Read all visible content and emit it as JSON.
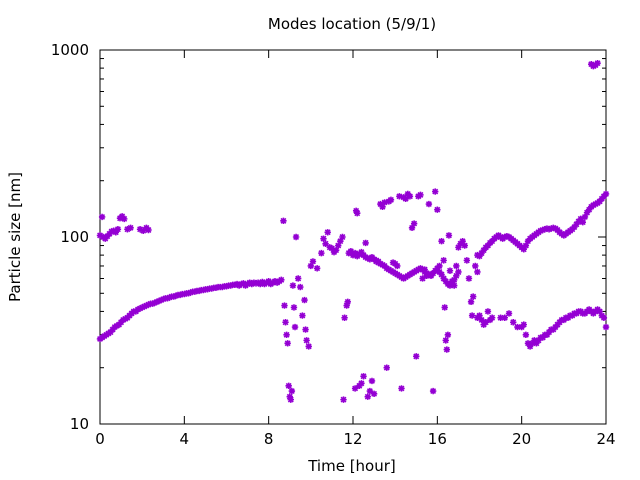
{
  "chart_data": {
    "type": "scatter",
    "title": "Modes location (5/9/1)",
    "xlabel": "Time [hour]",
    "ylabel": "Particle size [nm]",
    "xlim": [
      0,
      24
    ],
    "ylim": [
      10,
      1000
    ],
    "yscale": "log",
    "xticks": [
      0,
      4,
      8,
      12,
      16,
      20,
      24
    ],
    "xtick_labels": [
      "0",
      "4",
      "8",
      "12",
      "16",
      "20",
      "24"
    ],
    "yticks": [
      10,
      100,
      1000
    ],
    "ytick_labels": [
      "10",
      "100",
      "1000"
    ],
    "grid": false,
    "legend": "none",
    "marker": "asterisk",
    "color": "#9400d3",
    "points": [
      [
        0.0,
        28.5
      ],
      [
        0.1,
        29
      ],
      [
        0.2,
        29.5
      ],
      [
        0.3,
        30
      ],
      [
        0.4,
        30.5
      ],
      [
        0.5,
        31
      ],
      [
        0.6,
        32
      ],
      [
        0.7,
        33
      ],
      [
        0.8,
        33.5
      ],
      [
        0.9,
        34
      ],
      [
        1.0,
        35
      ],
      [
        1.1,
        36
      ],
      [
        1.2,
        36.5
      ],
      [
        1.3,
        37
      ],
      [
        1.4,
        38
      ],
      [
        1.5,
        39
      ],
      [
        1.6,
        40
      ],
      [
        1.7,
        40
      ],
      [
        1.8,
        41
      ],
      [
        1.9,
        41.5
      ],
      [
        2.0,
        42
      ],
      [
        2.1,
        42.5
      ],
      [
        2.2,
        43
      ],
      [
        2.3,
        43.5
      ],
      [
        2.4,
        44
      ],
      [
        2.5,
        44
      ],
      [
        2.6,
        44.5
      ],
      [
        2.7,
        45
      ],
      [
        2.8,
        45.5
      ],
      [
        2.9,
        46
      ],
      [
        3.0,
        46.5
      ],
      [
        3.1,
        47
      ],
      [
        3.2,
        47
      ],
      [
        3.3,
        47.5
      ],
      [
        3.4,
        48
      ],
      [
        3.5,
        48
      ],
      [
        3.6,
        48.5
      ],
      [
        3.7,
        49
      ],
      [
        3.8,
        49
      ],
      [
        3.9,
        49.5
      ],
      [
        4.0,
        49.5
      ],
      [
        4.1,
        50
      ],
      [
        4.2,
        50
      ],
      [
        4.3,
        50.5
      ],
      [
        4.4,
        51
      ],
      [
        4.5,
        51
      ],
      [
        4.6,
        51.5
      ],
      [
        4.7,
        51.5
      ],
      [
        4.8,
        52
      ],
      [
        4.9,
        52
      ],
      [
        5.0,
        52.5
      ],
      [
        5.1,
        52.5
      ],
      [
        5.2,
        53
      ],
      [
        5.3,
        53
      ],
      [
        5.4,
        53.5
      ],
      [
        5.5,
        53.5
      ],
      [
        5.6,
        54
      ],
      [
        5.7,
        54
      ],
      [
        5.8,
        54
      ],
      [
        5.9,
        54.5
      ],
      [
        6.0,
        54.5
      ],
      [
        6.1,
        55
      ],
      [
        6.2,
        55
      ],
      [
        6.3,
        55.5
      ],
      [
        6.4,
        55.5
      ],
      [
        6.5,
        56
      ],
      [
        6.6,
        55
      ],
      [
        6.7,
        56
      ],
      [
        6.8,
        56.5
      ],
      [
        6.9,
        55
      ],
      [
        7.0,
        56
      ],
      [
        7.1,
        57
      ],
      [
        7.2,
        56
      ],
      [
        7.3,
        57
      ],
      [
        7.4,
        56.5
      ],
      [
        7.5,
        57
      ],
      [
        7.6,
        56
      ],
      [
        7.7,
        57.5
      ],
      [
        7.8,
        56
      ],
      [
        7.9,
        57
      ],
      [
        8.0,
        58
      ],
      [
        8.1,
        56
      ],
      [
        8.2,
        57
      ],
      [
        8.3,
        58
      ],
      [
        8.4,
        57
      ],
      [
        8.5,
        58
      ],
      [
        8.6,
        59
      ],
      [
        0.0,
        102
      ],
      [
        0.1,
        128
      ],
      [
        0.15,
        100
      ],
      [
        0.25,
        98
      ],
      [
        0.35,
        101
      ],
      [
        0.45,
        104
      ],
      [
        0.55,
        107
      ],
      [
        0.65,
        108
      ],
      [
        0.75,
        106
      ],
      [
        0.85,
        110
      ],
      [
        0.95,
        126
      ],
      [
        1.05,
        129
      ],
      [
        1.15,
        125
      ],
      [
        1.3,
        110
      ],
      [
        1.45,
        112
      ],
      [
        1.9,
        110
      ],
      [
        2.05,
        108
      ],
      [
        2.2,
        112
      ],
      [
        2.3,
        109
      ],
      [
        8.7,
        122
      ],
      [
        8.75,
        43
      ],
      [
        8.8,
        35
      ],
      [
        8.85,
        30
      ],
      [
        8.9,
        27
      ],
      [
        8.95,
        16
      ],
      [
        9.0,
        14
      ],
      [
        9.05,
        13.5
      ],
      [
        9.1,
        15
      ],
      [
        9.15,
        55
      ],
      [
        9.2,
        42
      ],
      [
        9.25,
        33
      ],
      [
        9.3,
        100
      ],
      [
        9.4,
        60
      ],
      [
        9.5,
        54
      ],
      [
        9.6,
        38
      ],
      [
        9.7,
        46
      ],
      [
        9.75,
        32
      ],
      [
        9.8,
        28
      ],
      [
        9.9,
        26
      ],
      [
        10.0,
        70
      ],
      [
        10.1,
        74
      ],
      [
        10.3,
        68
      ],
      [
        10.5,
        82
      ],
      [
        10.6,
        98
      ],
      [
        10.7,
        92
      ],
      [
        10.8,
        106
      ],
      [
        10.9,
        88
      ],
      [
        11.0,
        87
      ],
      [
        11.1,
        83
      ],
      [
        11.2,
        85
      ],
      [
        11.3,
        90
      ],
      [
        11.4,
        95
      ],
      [
        11.5,
        100
      ],
      [
        11.55,
        13.5
      ],
      [
        11.6,
        37
      ],
      [
        11.7,
        43
      ],
      [
        11.75,
        45
      ],
      [
        11.8,
        82
      ],
      [
        11.9,
        84
      ],
      [
        12.0,
        80
      ],
      [
        12.1,
        15.5
      ],
      [
        12.15,
        138
      ],
      [
        12.2,
        134
      ],
      [
        12.3,
        16
      ],
      [
        12.4,
        16.5
      ],
      [
        12.5,
        18
      ],
      [
        12.6,
        93
      ],
      [
        12.7,
        14
      ],
      [
        12.8,
        15
      ],
      [
        12.9,
        17
      ],
      [
        13.0,
        14.5
      ],
      [
        13.1,
        75
      ],
      [
        13.2,
        74
      ],
      [
        13.3,
        150
      ],
      [
        13.4,
        145
      ],
      [
        13.5,
        153
      ],
      [
        13.6,
        20
      ],
      [
        13.7,
        155
      ],
      [
        13.8,
        158
      ],
      [
        13.9,
        73
      ],
      [
        14.0,
        72
      ],
      [
        14.1,
        70
      ],
      [
        14.2,
        165
      ],
      [
        14.3,
        15.5
      ],
      [
        14.4,
        163
      ],
      [
        14.5,
        160
      ],
      [
        14.6,
        170
      ],
      [
        14.7,
        165
      ],
      [
        14.8,
        112
      ],
      [
        14.9,
        118
      ],
      [
        15.0,
        23
      ],
      [
        15.1,
        165
      ],
      [
        15.2,
        168
      ],
      [
        15.3,
        60
      ],
      [
        15.4,
        67
      ],
      [
        15.5,
        62
      ],
      [
        15.6,
        150
      ],
      [
        15.7,
        63
      ],
      [
        15.8,
        15
      ],
      [
        15.9,
        175
      ],
      [
        16.0,
        140
      ],
      [
        16.1,
        70
      ],
      [
        16.2,
        95
      ],
      [
        16.3,
        75
      ],
      [
        16.35,
        42
      ],
      [
        16.4,
        28
      ],
      [
        16.45,
        25
      ],
      [
        16.5,
        30
      ],
      [
        16.55,
        102
      ],
      [
        16.6,
        66
      ],
      [
        16.7,
        58
      ],
      [
        16.8,
        55
      ],
      [
        16.9,
        70
      ],
      [
        17.0,
        88
      ],
      [
        17.1,
        92
      ],
      [
        17.2,
        95
      ],
      [
        17.3,
        90
      ],
      [
        17.4,
        75
      ],
      [
        17.5,
        60
      ],
      [
        17.6,
        45
      ],
      [
        17.65,
        38
      ],
      [
        17.7,
        48
      ],
      [
        17.8,
        70
      ],
      [
        17.9,
        65
      ],
      [
        12.1,
        82
      ],
      [
        12.2,
        79
      ],
      [
        12.3,
        81
      ],
      [
        12.4,
        83
      ],
      [
        12.5,
        80
      ],
      [
        12.6,
        78
      ],
      [
        12.7,
        77
      ],
      [
        12.8,
        76
      ],
      [
        12.9,
        78
      ],
      [
        13.0,
        76
      ],
      [
        13.1,
        74
      ],
      [
        13.2,
        73
      ],
      [
        13.3,
        72
      ],
      [
        13.4,
        71
      ],
      [
        13.5,
        70
      ],
      [
        13.6,
        68
      ],
      [
        13.7,
        67
      ],
      [
        13.8,
        66
      ],
      [
        13.9,
        65
      ],
      [
        14.0,
        64
      ],
      [
        14.1,
        63
      ],
      [
        14.2,
        62
      ],
      [
        14.3,
        61
      ],
      [
        14.4,
        60
      ],
      [
        14.5,
        61
      ],
      [
        14.6,
        62
      ],
      [
        14.7,
        63
      ],
      [
        14.8,
        64
      ],
      [
        14.9,
        65
      ],
      [
        15.0,
        66
      ],
      [
        15.1,
        67
      ],
      [
        15.2,
        68
      ],
      [
        15.3,
        67
      ],
      [
        15.4,
        65
      ],
      [
        15.5,
        64
      ],
      [
        15.6,
        63
      ],
      [
        15.7,
        62
      ],
      [
        15.8,
        64
      ],
      [
        15.9,
        66
      ],
      [
        16.0,
        68
      ],
      [
        16.1,
        65
      ],
      [
        16.2,
        63
      ],
      [
        16.3,
        60
      ],
      [
        16.4,
        58
      ],
      [
        16.5,
        56
      ],
      [
        16.6,
        55
      ],
      [
        16.7,
        57
      ],
      [
        16.8,
        59
      ],
      [
        16.9,
        62
      ],
      [
        17.0,
        65
      ],
      [
        17.9,
        80
      ],
      [
        18.0,
        79
      ],
      [
        18.1,
        82
      ],
      [
        18.2,
        85
      ],
      [
        18.3,
        88
      ],
      [
        18.4,
        90
      ],
      [
        18.5,
        93
      ],
      [
        18.6,
        95
      ],
      [
        18.7,
        98
      ],
      [
        18.8,
        100
      ],
      [
        18.9,
        102
      ],
      [
        19.0,
        100
      ],
      [
        19.1,
        98
      ],
      [
        19.2,
        100
      ],
      [
        19.3,
        101
      ],
      [
        19.4,
        100
      ],
      [
        19.5,
        98
      ],
      [
        19.6,
        96
      ],
      [
        19.7,
        94
      ],
      [
        19.8,
        92
      ],
      [
        19.9,
        90
      ],
      [
        20.0,
        88
      ],
      [
        20.1,
        86
      ],
      [
        20.2,
        90
      ],
      [
        20.3,
        95
      ],
      [
        20.4,
        98
      ],
      [
        20.5,
        100
      ],
      [
        20.6,
        102
      ],
      [
        20.7,
        104
      ],
      [
        20.8,
        106
      ],
      [
        20.9,
        108
      ],
      [
        21.0,
        109
      ],
      [
        21.1,
        110
      ],
      [
        21.2,
        111
      ],
      [
        21.3,
        110
      ],
      [
        21.4,
        111
      ],
      [
        21.5,
        112
      ],
      [
        21.6,
        111
      ],
      [
        21.7,
        109
      ],
      [
        21.8,
        106
      ],
      [
        21.9,
        104
      ],
      [
        22.0,
        102
      ],
      [
        22.1,
        104
      ],
      [
        22.2,
        106
      ],
      [
        22.3,
        108
      ],
      [
        22.4,
        110
      ],
      [
        22.5,
        113
      ],
      [
        22.6,
        117
      ],
      [
        22.7,
        121
      ],
      [
        22.8,
        125
      ],
      [
        22.9,
        120
      ],
      [
        23.0,
        128
      ],
      [
        23.1,
        135
      ],
      [
        23.2,
        140
      ],
      [
        23.3,
        145
      ],
      [
        23.4,
        148
      ],
      [
        23.5,
        150
      ],
      [
        23.6,
        152
      ],
      [
        23.7,
        155
      ],
      [
        23.8,
        160
      ],
      [
        23.9,
        165
      ],
      [
        24.0,
        170
      ],
      [
        17.9,
        37
      ],
      [
        18.0,
        38
      ],
      [
        18.1,
        36
      ],
      [
        18.2,
        34
      ],
      [
        18.3,
        35
      ],
      [
        18.4,
        40
      ],
      [
        18.5,
        36
      ],
      [
        18.6,
        37
      ],
      [
        19.0,
        37
      ],
      [
        19.2,
        37
      ],
      [
        19.4,
        39
      ],
      [
        19.6,
        35
      ],
      [
        19.8,
        33
      ],
      [
        20.0,
        33
      ],
      [
        20.1,
        34
      ],
      [
        20.2,
        30
      ],
      [
        20.3,
        27
      ],
      [
        20.4,
        26
      ],
      [
        20.5,
        27
      ],
      [
        20.6,
        28
      ],
      [
        20.7,
        27
      ],
      [
        20.8,
        28
      ],
      [
        20.9,
        29
      ],
      [
        21.0,
        29
      ],
      [
        21.1,
        30
      ],
      [
        21.2,
        30
      ],
      [
        21.3,
        31
      ],
      [
        21.4,
        32
      ],
      [
        21.5,
        32
      ],
      [
        21.6,
        33
      ],
      [
        21.7,
        34
      ],
      [
        21.8,
        35
      ],
      [
        21.9,
        36
      ],
      [
        22.0,
        36
      ],
      [
        22.1,
        37
      ],
      [
        22.2,
        37
      ],
      [
        22.3,
        38
      ],
      [
        22.4,
        38
      ],
      [
        22.5,
        39
      ],
      [
        22.6,
        39
      ],
      [
        22.7,
        40
      ],
      [
        22.8,
        40
      ],
      [
        22.9,
        39
      ],
      [
        23.0,
        39
      ],
      [
        23.1,
        40
      ],
      [
        23.2,
        41
      ],
      [
        23.3,
        40
      ],
      [
        23.4,
        39
      ],
      [
        23.5,
        40
      ],
      [
        23.6,
        41
      ],
      [
        23.7,
        40
      ],
      [
        23.8,
        38
      ],
      [
        23.9,
        37
      ],
      [
        24.0,
        33
      ],
      [
        23.3,
        840
      ],
      [
        23.4,
        820
      ],
      [
        23.5,
        830
      ],
      [
        23.6,
        850
      ]
    ]
  }
}
